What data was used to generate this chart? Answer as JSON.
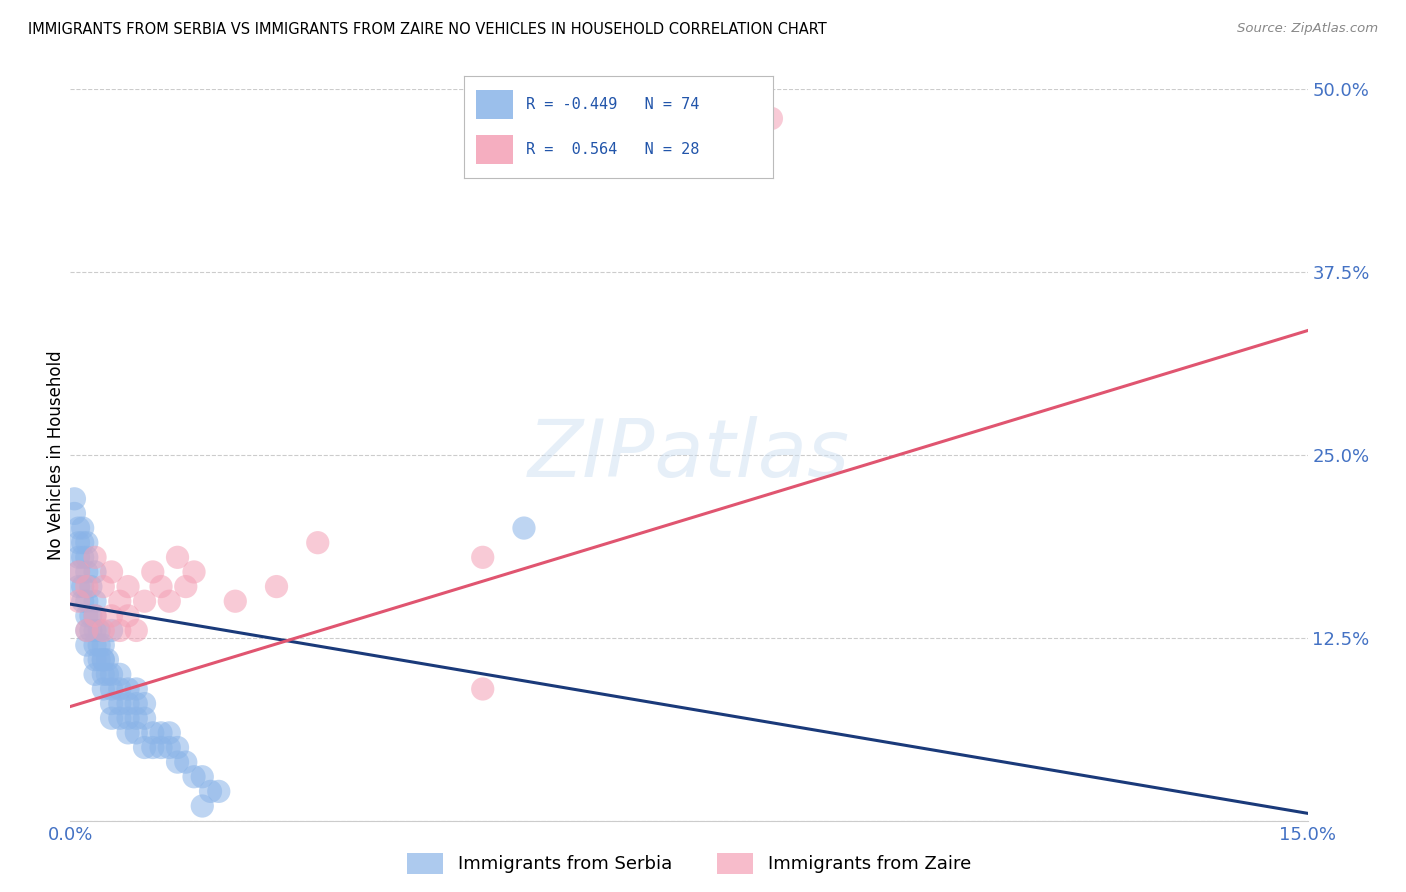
{
  "title": "IMMIGRANTS FROM SERBIA VS IMMIGRANTS FROM ZAIRE NO VEHICLES IN HOUSEHOLD CORRELATION CHART",
  "source": "Source: ZipAtlas.com",
  "ylabel": "No Vehicles in Household",
  "xlim": [
    0.0,
    0.15
  ],
  "ylim": [
    0.0,
    0.5
  ],
  "xtick_positions": [
    0.0,
    0.05,
    0.1,
    0.15
  ],
  "xtick_labels": [
    "0.0%",
    "",
    "",
    "15.0%"
  ],
  "ytick_positions": [
    0.0,
    0.125,
    0.25,
    0.375,
    0.5
  ],
  "ytick_labels": [
    "",
    "12.5%",
    "25.0%",
    "37.5%",
    "50.0%"
  ],
  "serbia_color": "#8AB4E8",
  "zaire_color": "#F4A0B5",
  "serbia_line_color": "#1A3A7A",
  "zaire_line_color": "#E05570",
  "legend_serbia_label": "Immigrants from Serbia",
  "legend_zaire_label": "Immigrants from Zaire",
  "serbia_R": -0.449,
  "serbia_N": 74,
  "zaire_R": 0.564,
  "zaire_N": 28,
  "serbia_line_x0": 0.0,
  "serbia_line_y0": 0.148,
  "serbia_line_x1": 0.15,
  "serbia_line_y1": 0.005,
  "zaire_line_x0": 0.0,
  "zaire_line_y0": 0.078,
  "zaire_line_x1": 0.15,
  "zaire_line_y1": 0.335,
  "watermark_text": "ZIPatlas",
  "serbia_x": [
    0.0005,
    0.001,
    0.001,
    0.001,
    0.001,
    0.0015,
    0.0015,
    0.0015,
    0.0015,
    0.002,
    0.002,
    0.002,
    0.002,
    0.002,
    0.002,
    0.0025,
    0.0025,
    0.0025,
    0.003,
    0.003,
    0.003,
    0.003,
    0.003,
    0.003,
    0.0035,
    0.0035,
    0.0035,
    0.004,
    0.004,
    0.004,
    0.004,
    0.0045,
    0.0045,
    0.005,
    0.005,
    0.005,
    0.005,
    0.006,
    0.006,
    0.006,
    0.007,
    0.007,
    0.007,
    0.008,
    0.008,
    0.008,
    0.009,
    0.009,
    0.01,
    0.01,
    0.011,
    0.011,
    0.012,
    0.013,
    0.013,
    0.014,
    0.015,
    0.016,
    0.017,
    0.018,
    0.0005,
    0.001,
    0.0015,
    0.002,
    0.003,
    0.004,
    0.005,
    0.006,
    0.007,
    0.008,
    0.009,
    0.012,
    0.016,
    0.055
  ],
  "serbia_y": [
    0.21,
    0.19,
    0.18,
    0.17,
    0.16,
    0.2,
    0.18,
    0.16,
    0.15,
    0.19,
    0.17,
    0.15,
    0.14,
    0.13,
    0.12,
    0.16,
    0.14,
    0.13,
    0.15,
    0.14,
    0.13,
    0.12,
    0.11,
    0.1,
    0.13,
    0.12,
    0.11,
    0.12,
    0.11,
    0.1,
    0.09,
    0.11,
    0.1,
    0.1,
    0.09,
    0.08,
    0.07,
    0.09,
    0.08,
    0.07,
    0.08,
    0.07,
    0.06,
    0.08,
    0.07,
    0.06,
    0.07,
    0.05,
    0.06,
    0.05,
    0.06,
    0.05,
    0.05,
    0.05,
    0.04,
    0.04,
    0.03,
    0.03,
    0.02,
    0.02,
    0.22,
    0.2,
    0.19,
    0.18,
    0.17,
    0.11,
    0.13,
    0.1,
    0.09,
    0.09,
    0.08,
    0.06,
    0.01,
    0.2
  ],
  "zaire_x": [
    0.001,
    0.001,
    0.002,
    0.002,
    0.003,
    0.003,
    0.004,
    0.004,
    0.005,
    0.005,
    0.006,
    0.006,
    0.007,
    0.007,
    0.008,
    0.009,
    0.01,
    0.011,
    0.012,
    0.013,
    0.014,
    0.015,
    0.02,
    0.025,
    0.03,
    0.05,
    0.05,
    0.085
  ],
  "zaire_y": [
    0.15,
    0.17,
    0.13,
    0.16,
    0.14,
    0.18,
    0.13,
    0.16,
    0.14,
    0.17,
    0.13,
    0.15,
    0.14,
    0.16,
    0.13,
    0.15,
    0.17,
    0.16,
    0.15,
    0.18,
    0.16,
    0.17,
    0.15,
    0.16,
    0.19,
    0.09,
    0.18,
    0.48
  ]
}
